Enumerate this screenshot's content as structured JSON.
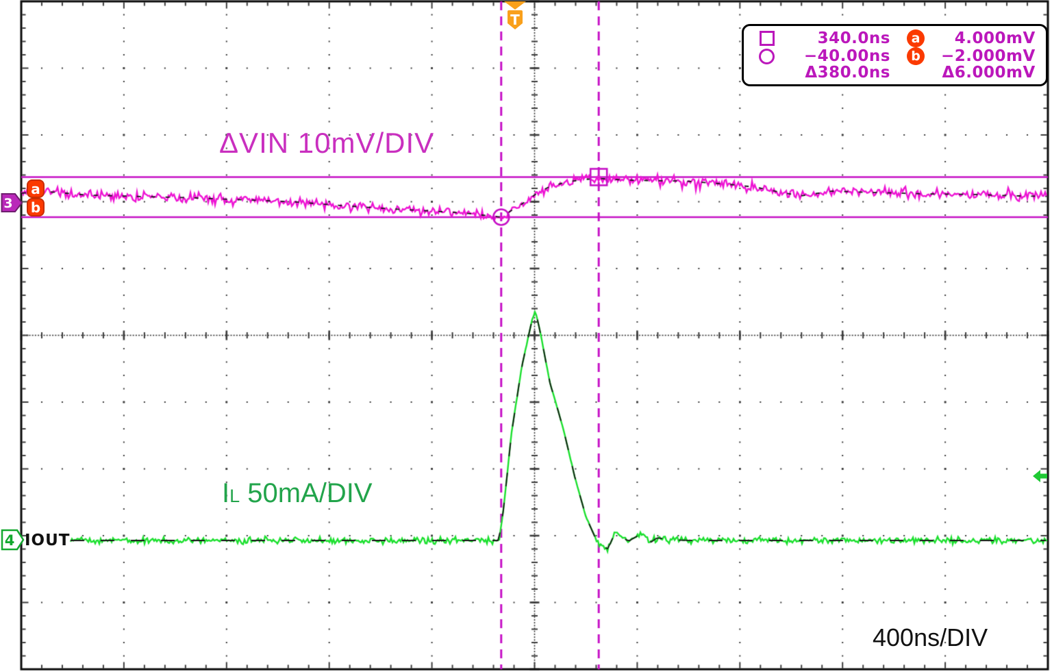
{
  "scope": {
    "channel3_badge": "3",
    "channel4_badge": "4",
    "channel4_name": "IOUT",
    "trigger_badge": "T",
    "cursor_a_badge": "a",
    "cursor_b_badge": "b",
    "trace3_label": "ΔVIN 10mV/DIV",
    "trace4_label": {
      "prefix": "I",
      "sub": "L",
      "rest": " 50mA/DIV"
    },
    "timebase": "400ns/DIV"
  },
  "measurements": {
    "square_time": "340.0ns",
    "circle_time": "−40.00ns",
    "delta_time": "Δ380.0ns",
    "a_value": "4.000mV",
    "b_value": "−2.000mV",
    "delta_value": "Δ6.000mV"
  },
  "colors": {
    "trace_vin": "#EE14D4",
    "trace_il": "#1BE02E",
    "cursor_magenta": "#C611C6",
    "label_vin": "#C92FBF",
    "label_il": "#22A44B",
    "badge_orange": "#FB3A00",
    "trigger_orange": "#F9A01B",
    "channel3_purple": "#B928B9",
    "channel4_green": "#13A82F",
    "readout_text": "#BB17BB"
  },
  "chart_data": {
    "type": "line",
    "title": "Load transient response (oscilloscope capture)",
    "x_axis": {
      "unit": "ns",
      "per_div": 400,
      "divisions": 10,
      "visible_range": [
        -1910,
        2090
      ],
      "trigger_at": 0,
      "label": "400ns/DIV"
    },
    "series": [
      {
        "name": "ΔVIN",
        "channel": 3,
        "unit": "mV",
        "scale": "10mV/DIV",
        "color": "#EE14D4",
        "keypoints_t_v": [
          [
            -1910,
            1.6
          ],
          [
            -1800,
            1.8
          ],
          [
            -1650,
            1.3
          ],
          [
            -1450,
            1.1
          ],
          [
            -1250,
            0.9
          ],
          [
            -1050,
            0.6
          ],
          [
            -850,
            0.3
          ],
          [
            -650,
            -0.3
          ],
          [
            -450,
            -0.8
          ],
          [
            -300,
            -1.1
          ],
          [
            -180,
            -1.4
          ],
          [
            -90,
            -1.8
          ],
          [
            -40,
            -2.0
          ],
          [
            0,
            -1.0
          ],
          [
            50,
            0.2
          ],
          [
            100,
            1.6
          ],
          [
            150,
            2.6
          ],
          [
            210,
            3.2
          ],
          [
            270,
            3.6
          ],
          [
            340,
            3.8
          ],
          [
            420,
            3.6
          ],
          [
            500,
            3.5
          ],
          [
            675,
            3.4
          ],
          [
            850,
            2.9
          ],
          [
            950,
            2.5
          ],
          [
            1050,
            1.7
          ],
          [
            1130,
            1.2
          ],
          [
            1250,
            1.9
          ],
          [
            1400,
            1.7
          ],
          [
            1600,
            1.5
          ],
          [
            1800,
            1.4
          ],
          [
            1950,
            1.2
          ],
          [
            2090,
            1.1
          ]
        ]
      },
      {
        "name": "IL (IOUT)",
        "channel": 4,
        "unit": "mA",
        "scale": "50mA/DIV",
        "color": "#1BE02E",
        "keypoints_t_v": [
          [
            -1910,
            0
          ],
          [
            -500,
            0
          ],
          [
            -48,
            0
          ],
          [
            -30,
            25
          ],
          [
            0,
            80
          ],
          [
            40,
            130
          ],
          [
            80,
            165
          ],
          [
            93,
            172
          ],
          [
            110,
            158
          ],
          [
            150,
            118
          ],
          [
            200,
            85
          ],
          [
            250,
            45
          ],
          [
            290,
            18
          ],
          [
            331,
            0
          ],
          [
            352,
            -4.5
          ],
          [
            376,
            -6.2
          ],
          [
            403,
            5.5
          ],
          [
            456,
            -0.5
          ],
          [
            510,
            5.5
          ],
          [
            542,
            -1.5
          ],
          [
            568,
            2
          ],
          [
            620,
            0.5
          ],
          [
            700,
            0
          ],
          [
            2090,
            0
          ]
        ]
      }
    ],
    "cursors": {
      "vertical_bars_ns": [
        -40,
        340
      ],
      "horizontal_bars_mV": [
        4,
        -2
      ],
      "square_marker": {
        "t_ns": 340,
        "v_mV": 4
      },
      "circle_marker": {
        "t_ns": -40,
        "v_mV": -2
      },
      "delta_t": "Δ380.0ns",
      "delta_v": "Δ6.000mV"
    }
  }
}
